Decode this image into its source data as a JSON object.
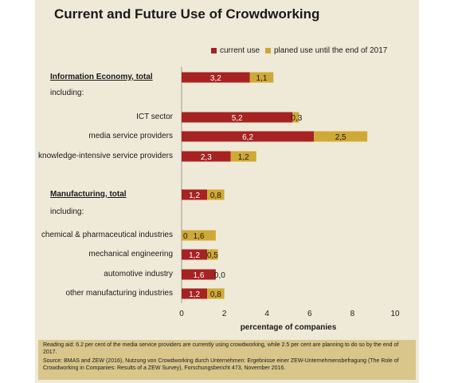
{
  "title": "Current and Future Use of Crowdworking",
  "legend": {
    "current": "current use",
    "planned": "planed use until the end of 2017"
  },
  "colors": {
    "current": "#a62322",
    "planned": "#cfa935",
    "panel": "#efe9d8",
    "footnote_bg": "#d9c68a"
  },
  "chart_data": {
    "type": "bar",
    "orientation": "horizontal",
    "stacked": true,
    "xlabel": "percentage of companies",
    "xlim": [
      0,
      10
    ],
    "xticks": [
      "0",
      "2",
      "4",
      "6",
      "8",
      "10"
    ],
    "categories": [
      "Information Economy, total",
      "including:",
      "ICT sector",
      "media service providers",
      "knowledge-intensive service providers",
      "Manufacturing, total",
      "including:",
      "chemical & pharmaceutical industries",
      "mechanical engineering",
      "automotive industry",
      "other manufacturing industries"
    ],
    "rows": [
      {
        "label": "Information Economy, total",
        "group": true,
        "current": 3.2,
        "planned": 1.1,
        "current_label": "3,2",
        "planned_label": "1,1"
      },
      {
        "label": "including:",
        "note": true
      },
      {
        "label": "ICT sector",
        "current": 5.2,
        "planned": 0.3,
        "current_label": "5,2",
        "planned_label": "0,3"
      },
      {
        "label": "media service providers",
        "current": 6.2,
        "planned": 2.5,
        "current_label": "6,2",
        "planned_label": "2,5"
      },
      {
        "label": "knowledge-intensive service providers",
        "current": 2.3,
        "planned": 1.2,
        "current_label": "2,3",
        "planned_label": "1,2"
      },
      {
        "label": "Manufacturing, total",
        "group": true,
        "current": 1.2,
        "planned": 0.8,
        "current_label": "1,2",
        "planned_label": "0,8"
      },
      {
        "label": "including:",
        "note": true
      },
      {
        "label": "chemical & pharmaceutical industries",
        "current": 0.0,
        "planned": 1.6,
        "current_label": "0",
        "planned_label": "1,6"
      },
      {
        "label": "mechanical engineering",
        "current": 1.2,
        "planned": 0.5,
        "current_label": "1,2",
        "planned_label": "0,5"
      },
      {
        "label": "automotive industry",
        "current": 1.6,
        "planned": 0.0,
        "current_label": "1,6",
        "planned_label": "0,0"
      },
      {
        "label": "other manufacturing industries",
        "current": 1.2,
        "planned": 0.8,
        "current_label": "1,2",
        "planned_label": "0,8"
      }
    ]
  },
  "footnote": {
    "reading_aid": "Reading aid: 6.2 per cent of the media service providers are currently using crowdworking, while 2.5 per cent are planning to do so by the end of 2017.",
    "source": "Source: BMAS and ZEW (2016), Nutzung von Crowdworking durch Unternehmen: Ergebnisse einer ZEW-Unternehmensbefragung (The Role of Crowdworking in Companies: Results of a ZEW Survey), Forschungsbericht 473, November 2016."
  }
}
